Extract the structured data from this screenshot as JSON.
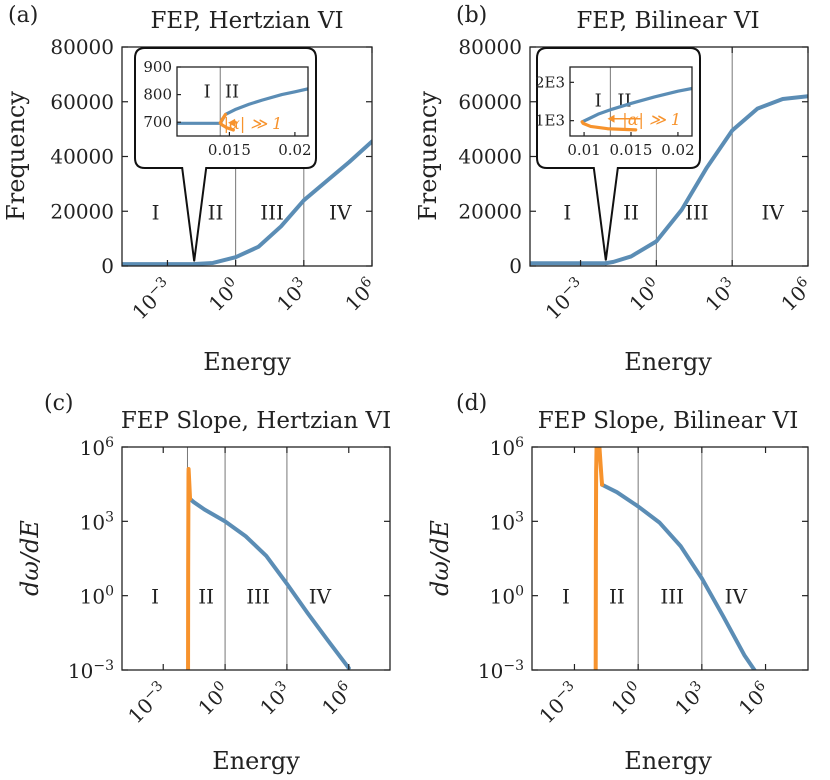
{
  "colors": {
    "blue": "#5b8db5",
    "orange": "#f7932d",
    "ink": "#222222",
    "divider": "#777777"
  },
  "chart_data": [
    {
      "id": "a",
      "type": "line",
      "panel_label": "(a)",
      "title": "FEP, Hertzian VI",
      "xlabel": "Energy",
      "ylabel": "Frequency",
      "xscale": "log",
      "xlim": [
        1e-05,
        1000000
      ],
      "ylim": [
        0,
        80000
      ],
      "xticks": [
        {
          "value": 0.001,
          "base": "10",
          "exp": "−3"
        },
        {
          "value": 1,
          "base": "10",
          "exp": "0"
        },
        {
          "value": 1000,
          "base": "10",
          "exp": "3"
        },
        {
          "value": 1000000,
          "base": "10",
          "exp": "6"
        }
      ],
      "yticks": [
        {
          "value": 0,
          "label": "0"
        },
        {
          "value": 20000,
          "label": "20000"
        },
        {
          "value": 40000,
          "label": "40000"
        },
        {
          "value": 60000,
          "label": "60000"
        },
        {
          "value": 80000,
          "label": "80000"
        }
      ],
      "dividers": [
        0.015,
        1,
        1000
      ],
      "region_labels": [
        {
          "text": "I",
          "x": 0.0003,
          "y": 20000
        },
        {
          "text": "II",
          "x": 0.13,
          "y": 20000
        },
        {
          "text": "III",
          "x": 40,
          "y": 20000
        },
        {
          "text": "IV",
          "x": 40000,
          "y": 20000
        }
      ],
      "series": [
        {
          "color": "#5b8db5",
          "points": [
            [
              1e-05,
              696
            ],
            [
              0.015,
              696
            ],
            [
              0.02,
              800
            ],
            [
              0.1,
              1100
            ],
            [
              1,
              3200
            ],
            [
              10,
              7000
            ],
            [
              100,
              14500
            ],
            [
              1000,
              24000
            ],
            [
              10000,
              31000
            ],
            [
              100000,
              38000
            ],
            [
              1000000,
              45500
            ]
          ]
        }
      ],
      "inset": {
        "xlim": [
          0.011,
          0.021
        ],
        "ylim": [
          650,
          900
        ],
        "xscale": "linear",
        "xticks": [
          {
            "value": 0.015,
            "label": "0.015"
          },
          {
            "value": 0.02,
            "label": "0.02"
          }
        ],
        "yticks": [
          {
            "value": 700,
            "label": "700"
          },
          {
            "value": 800,
            "label": "800"
          },
          {
            "value": 900,
            "label": "900"
          }
        ],
        "divider": 0.0143,
        "region_labels": [
          {
            "text": "I",
            "x": 0.0133,
            "y": 815
          },
          {
            "text": "II",
            "x": 0.0152,
            "y": 815
          }
        ],
        "annotation": "|α| ≫ 1",
        "annotation_pos": [
          0.0168,
          698
        ],
        "arrow_from": [
          0.0156,
          698
        ],
        "arrow_to": [
          0.0149,
          698
        ],
        "zoom_point": [
          0.015,
          696
        ],
        "series": [
          {
            "color": "#5b8db5",
            "points": [
              [
                0.011,
                696
              ],
              [
                0.0143,
                696
              ],
              [
                0.0147,
                728
              ],
              [
                0.0155,
                747
              ],
              [
                0.0165,
                765
              ],
              [
                0.0175,
                780
              ],
              [
                0.019,
                800
              ],
              [
                0.02,
                810
              ],
              [
                0.021,
                821
              ]
            ]
          },
          {
            "color": "#f7932d",
            "points": [
              [
                0.0153,
                672
              ],
              [
                0.0148,
                680
              ],
              [
                0.01445,
                690
              ],
              [
                0.0143,
                697
              ],
              [
                0.01445,
                710
              ],
              [
                0.0147,
                728
              ]
            ]
          }
        ]
      }
    },
    {
      "id": "b",
      "type": "line",
      "panel_label": "(b)",
      "title": "FEP, Bilinear VI",
      "xlabel": "Energy",
      "ylabel": "Frequency",
      "xscale": "log",
      "xlim": [
        1e-05,
        1000000
      ],
      "ylim": [
        0,
        80000
      ],
      "xticks": [
        {
          "value": 0.001,
          "base": "10",
          "exp": "−3"
        },
        {
          "value": 1,
          "base": "10",
          "exp": "0"
        },
        {
          "value": 1000,
          "base": "10",
          "exp": "3"
        },
        {
          "value": 1000000,
          "base": "10",
          "exp": "6"
        }
      ],
      "yticks": [
        {
          "value": 0,
          "label": "0"
        },
        {
          "value": 20000,
          "label": "20000"
        },
        {
          "value": 40000,
          "label": "40000"
        },
        {
          "value": 60000,
          "label": "60000"
        },
        {
          "value": 80000,
          "label": "80000"
        }
      ],
      "dividers": [
        0.01,
        1,
        1000
      ],
      "region_labels": [
        {
          "text": "I",
          "x": 0.0003,
          "y": 20000
        },
        {
          "text": "II",
          "x": 0.1,
          "y": 20000
        },
        {
          "text": "III",
          "x": 40,
          "y": 20000
        },
        {
          "text": "IV",
          "x": 40000,
          "y": 20000
        }
      ],
      "series": [
        {
          "color": "#5b8db5",
          "points": [
            [
              1e-05,
              1000
            ],
            [
              0.01,
              1000
            ],
            [
              0.02,
              1500
            ],
            [
              0.1,
              3500
            ],
            [
              1,
              9000
            ],
            [
              10,
              20500
            ],
            [
              100,
              36000
            ],
            [
              1000,
              49500
            ],
            [
              10000,
              57500
            ],
            [
              100000,
              61000
            ],
            [
              1000000,
              62000
            ]
          ]
        }
      ],
      "inset": {
        "xlim": [
          0.0085,
          0.0215
        ],
        "ylim": [
          600,
          2400
        ],
        "xscale": "linear",
        "xticks": [
          {
            "value": 0.01,
            "label": "0.01"
          },
          {
            "value": 0.015,
            "label": "0.015"
          },
          {
            "value": 0.02,
            "label": "0.02"
          }
        ],
        "yticks": [
          {
            "value": 1000,
            "label": "1E3"
          },
          {
            "value": 2000,
            "label": "2E3"
          }
        ],
        "divider": 0.0128,
        "region_labels": [
          {
            "text": "I",
            "x": 0.0115,
            "y": 1550
          },
          {
            "text": "II",
            "x": 0.0143,
            "y": 1550
          }
        ],
        "annotation": "|α| ≫ 1",
        "annotation_pos": [
          0.0172,
          1050
        ],
        "arrow_from": [
          0.016,
          1050
        ],
        "arrow_to": [
          0.0125,
          1050
        ],
        "zoom_point": [
          0.01,
          1000
        ],
        "series": [
          {
            "color": "#5b8db5",
            "points": [
              [
                0.0098,
                970
              ],
              [
                0.0105,
                1050
              ],
              [
                0.0115,
                1170
              ],
              [
                0.013,
                1300
              ],
              [
                0.015,
                1450
              ],
              [
                0.0175,
                1620
              ],
              [
                0.02,
                1770
              ],
              [
                0.0215,
                1840
              ]
            ]
          },
          {
            "color": "#f7932d",
            "points": [
              [
                0.0155,
                760
              ],
              [
                0.0125,
                790
              ],
              [
                0.0107,
                850
              ],
              [
                0.0099,
                930
              ],
              [
                0.0098,
                970
              ]
            ]
          }
        ]
      }
    },
    {
      "id": "c",
      "type": "line",
      "panel_label": "(c)",
      "title": "FEP Slope, Hertzian VI",
      "xlabel": "Energy",
      "ylabel": "dω/dE",
      "xscale": "log",
      "yscale": "log",
      "xlim": [
        1e-05,
        100000000
      ],
      "ylim": [
        0.001,
        1000000
      ],
      "xticks": [
        {
          "value": 0.001,
          "base": "10",
          "exp": "−3"
        },
        {
          "value": 1,
          "base": "10",
          "exp": "0"
        },
        {
          "value": 1000,
          "base": "10",
          "exp": "3"
        },
        {
          "value": 1000000,
          "base": "10",
          "exp": "6"
        }
      ],
      "yticks": [
        {
          "value": 0.001,
          "base": "10",
          "exp": "−3"
        },
        {
          "value": 1,
          "base": "10",
          "exp": "0"
        },
        {
          "value": 1000,
          "base": "10",
          "exp": "3"
        },
        {
          "value": 1000000,
          "base": "10",
          "exp": "6"
        }
      ],
      "dividers": [
        0.015,
        1,
        1000
      ],
      "region_labels": [
        {
          "text": "I",
          "x": 0.0004,
          "y": 1
        },
        {
          "text": "II",
          "x": 0.12,
          "y": 1
        },
        {
          "text": "III",
          "x": 40,
          "y": 1
        },
        {
          "text": "IV",
          "x": 40000,
          "y": 1
        }
      ],
      "series": [
        {
          "color": "#5b8db5",
          "points": [
            [
              0.02,
              8000
            ],
            [
              0.03,
              6000
            ],
            [
              0.1,
              3000
            ],
            [
              1,
              1000
            ],
            [
              10,
              250
            ],
            [
              100,
              40
            ],
            [
              1000,
              3
            ],
            [
              10000,
              0.2
            ],
            [
              100000,
              0.015
            ],
            [
              1000000,
              0.0012
            ]
          ]
        },
        {
          "color": "#f7932d",
          "points": [
            [
              0.016,
              0.001
            ],
            [
              0.0162,
              10
            ],
            [
              0.0165,
              1000
            ],
            [
              0.0168,
              80000
            ],
            [
              0.017,
              130000
            ],
            [
              0.0175,
              80000
            ],
            [
              0.019,
              20000
            ],
            [
              0.02,
              8000
            ]
          ]
        }
      ]
    },
    {
      "id": "d",
      "type": "line",
      "panel_label": "(d)",
      "title": "FEP Slope, Bilinear VI",
      "xlabel": "Energy",
      "ylabel": "dω/dE",
      "xscale": "log",
      "yscale": "log",
      "xlim": [
        1e-05,
        100000000
      ],
      "ylim": [
        0.001,
        1000000
      ],
      "xticks": [
        {
          "value": 0.001,
          "base": "10",
          "exp": "−3"
        },
        {
          "value": 1,
          "base": "10",
          "exp": "0"
        },
        {
          "value": 1000,
          "base": "10",
          "exp": "3"
        },
        {
          "value": 1000000,
          "base": "10",
          "exp": "6"
        }
      ],
      "yticks": [
        {
          "value": 0.001,
          "base": "10",
          "exp": "−3"
        },
        {
          "value": 1,
          "base": "10",
          "exp": "0"
        },
        {
          "value": 1000,
          "base": "10",
          "exp": "3"
        },
        {
          "value": 1000000,
          "base": "10",
          "exp": "6"
        }
      ],
      "dividers": [
        0.01,
        1,
        1000
      ],
      "region_labels": [
        {
          "text": "I",
          "x": 0.0004,
          "y": 1
        },
        {
          "text": "II",
          "x": 0.1,
          "y": 1
        },
        {
          "text": "III",
          "x": 40,
          "y": 1
        },
        {
          "text": "IV",
          "x": 40000,
          "y": 1
        }
      ],
      "series": [
        {
          "color": "#5b8db5",
          "points": [
            [
              0.02,
              30000
            ],
            [
              0.1,
              15000
            ],
            [
              1,
              4000
            ],
            [
              10,
              900
            ],
            [
              100,
              100
            ],
            [
              1000,
              5
            ],
            [
              10000,
              0.15
            ],
            [
              100000,
              0.004
            ],
            [
              300000,
              0.001
            ]
          ]
        },
        {
          "color": "#f7932d",
          "points": [
            [
              0.01,
              0.001
            ],
            [
              0.0102,
              100
            ],
            [
              0.0105,
              100000
            ],
            [
              0.011,
              1000000
            ],
            [
              0.015,
              1000000
            ],
            [
              0.017,
              200000
            ],
            [
              0.019,
              50000
            ],
            [
              0.02,
              30000
            ]
          ]
        }
      ]
    }
  ]
}
